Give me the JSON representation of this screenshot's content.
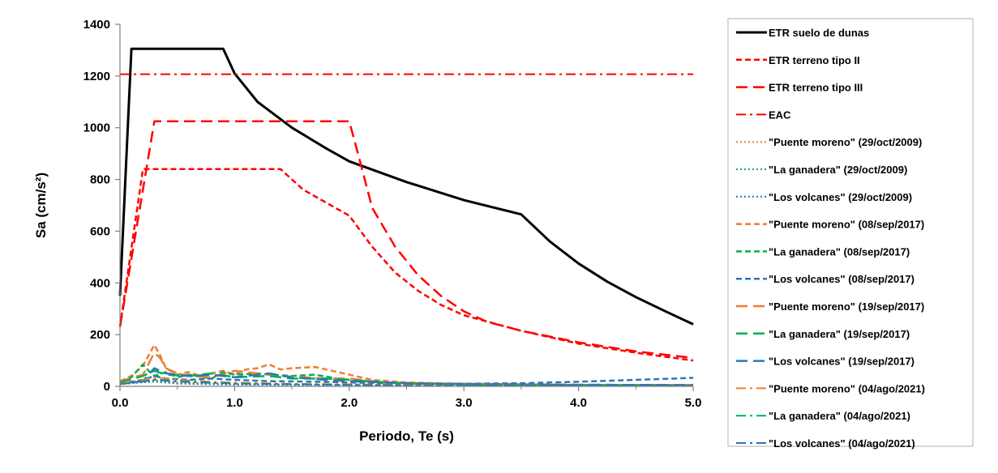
{
  "chart_data": {
    "type": "line",
    "title": "",
    "xlabel": "Periodo, Te (s)",
    "ylabel": "Sa (cm/s²)",
    "xlim": [
      0,
      5
    ],
    "ylim": [
      0,
      1400
    ],
    "grid": false,
    "legend_position": "right",
    "x_ticks": [
      "0.0",
      "1.0",
      "2.0",
      "3.0",
      "4.0",
      "5.0"
    ],
    "y_ticks": [
      "0",
      "200",
      "400",
      "600",
      "800",
      "1000",
      "1200",
      "1400"
    ],
    "x_tick_values": [
      0,
      1,
      2,
      3,
      4,
      5
    ],
    "y_tick_values": [
      0,
      200,
      400,
      600,
      800,
      1000,
      1200,
      1400
    ],
    "series": [
      {
        "name": "ETR suelo de dunas",
        "color": "#000000",
        "dash": "solid",
        "width": 3,
        "points": [
          [
            0,
            350
          ],
          [
            0.1,
            1305
          ],
          [
            0.9,
            1305
          ],
          [
            1.0,
            1210
          ],
          [
            1.2,
            1100
          ],
          [
            1.5,
            1000
          ],
          [
            1.8,
            920
          ],
          [
            2.0,
            870
          ],
          [
            2.5,
            790
          ],
          [
            3.0,
            720
          ],
          [
            3.5,
            665
          ],
          [
            3.75,
            560
          ],
          [
            4.0,
            475
          ],
          [
            4.25,
            405
          ],
          [
            4.5,
            345
          ],
          [
            4.75,
            292
          ],
          [
            5.0,
            240
          ]
        ]
      },
      {
        "name": "ETR terreno tipo II",
        "color": "#ff0000",
        "dash": "short",
        "width": 2.5,
        "points": [
          [
            0,
            230
          ],
          [
            0.2,
            840
          ],
          [
            1.4,
            840
          ],
          [
            1.6,
            760
          ],
          [
            1.8,
            710
          ],
          [
            2.0,
            660
          ],
          [
            2.2,
            540
          ],
          [
            2.4,
            440
          ],
          [
            2.6,
            370
          ],
          [
            2.8,
            315
          ],
          [
            3.0,
            275
          ],
          [
            3.5,
            215
          ],
          [
            4.0,
            165
          ],
          [
            4.5,
            130
          ],
          [
            5.0,
            100
          ]
        ]
      },
      {
        "name": "ETR terreno tipo III",
        "color": "#ff0000",
        "dash": "long",
        "width": 2.5,
        "points": [
          [
            0,
            230
          ],
          [
            0.3,
            1025
          ],
          [
            2.0,
            1025
          ],
          [
            2.1,
            860
          ],
          [
            2.2,
            690
          ],
          [
            2.4,
            540
          ],
          [
            2.6,
            430
          ],
          [
            2.8,
            350
          ],
          [
            3.0,
            290
          ],
          [
            3.2,
            250
          ],
          [
            3.5,
            215
          ],
          [
            4.0,
            170
          ],
          [
            4.5,
            135
          ],
          [
            5.0,
            110
          ]
        ]
      },
      {
        "name": "EAC",
        "color": "#ff0000",
        "dash": "dashdot",
        "width": 2,
        "points": [
          [
            0,
            1207
          ],
          [
            5.0,
            1207
          ]
        ]
      },
      {
        "name": "\"Puente moreno\" (29/oct/2009)",
        "color": "#ed7d31",
        "dash": "dotted",
        "width": 1.8,
        "points": [
          [
            0,
            10
          ],
          [
            0.2,
            20
          ],
          [
            0.3,
            25
          ],
          [
            0.5,
            15
          ],
          [
            0.8,
            12
          ],
          [
            1.0,
            10
          ],
          [
            1.5,
            8
          ],
          [
            2.0,
            6
          ],
          [
            3.0,
            4
          ],
          [
            4.0,
            3
          ],
          [
            5.0,
            2
          ]
        ]
      },
      {
        "name": "\"La ganadera\" (29/oct/2009)",
        "color": "#00b050",
        "dash": "dotted",
        "width": 1.8,
        "points": [
          [
            0,
            8
          ],
          [
            0.2,
            18
          ],
          [
            0.3,
            22
          ],
          [
            0.5,
            12
          ],
          [
            1.0,
            8
          ],
          [
            2.0,
            5
          ],
          [
            3.0,
            3
          ],
          [
            5.0,
            2
          ]
        ]
      },
      {
        "name": "\"Los volcanes\" (29/oct/2009)",
        "color": "#2e75b6",
        "dash": "dotted",
        "width": 1.8,
        "points": [
          [
            0,
            8
          ],
          [
            0.2,
            15
          ],
          [
            0.3,
            18
          ],
          [
            0.5,
            10
          ],
          [
            1.0,
            6
          ],
          [
            2.0,
            4
          ],
          [
            3.0,
            3
          ],
          [
            5.0,
            2
          ]
        ]
      },
      {
        "name": "\"Puente moreno\" (08/sep/2017)",
        "color": "#ed7d31",
        "dash": "short",
        "width": 2.5,
        "points": [
          [
            0,
            20
          ],
          [
            0.1,
            40
          ],
          [
            0.2,
            80
          ],
          [
            0.3,
            160
          ],
          [
            0.35,
            120
          ],
          [
            0.4,
            70
          ],
          [
            0.5,
            45
          ],
          [
            0.6,
            55
          ],
          [
            0.7,
            40
          ],
          [
            0.8,
            50
          ],
          [
            0.9,
            60
          ],
          [
            1.0,
            45
          ],
          [
            1.1,
            65
          ],
          [
            1.2,
            70
          ],
          [
            1.3,
            85
          ],
          [
            1.4,
            65
          ],
          [
            1.5,
            70
          ],
          [
            1.7,
            75
          ],
          [
            1.9,
            55
          ],
          [
            2.0,
            45
          ],
          [
            2.2,
            25
          ],
          [
            2.5,
            15
          ],
          [
            3.0,
            10
          ],
          [
            4.0,
            6
          ],
          [
            5.0,
            5
          ]
        ]
      },
      {
        "name": "\"La ganadera\" (08/sep/2017)",
        "color": "#00b050",
        "dash": "short",
        "width": 2.5,
        "points": [
          [
            0,
            15
          ],
          [
            0.1,
            35
          ],
          [
            0.2,
            85
          ],
          [
            0.25,
            60
          ],
          [
            0.3,
            40
          ],
          [
            0.4,
            55
          ],
          [
            0.5,
            35
          ],
          [
            0.6,
            45
          ],
          [
            0.8,
            30
          ],
          [
            0.9,
            55
          ],
          [
            1.0,
            45
          ],
          [
            1.2,
            50
          ],
          [
            1.3,
            45
          ],
          [
            1.5,
            40
          ],
          [
            1.7,
            45
          ],
          [
            1.9,
            30
          ],
          [
            2.0,
            25
          ],
          [
            2.3,
            15
          ],
          [
            3.0,
            8
          ],
          [
            4.0,
            5
          ],
          [
            5.0,
            4
          ]
        ]
      },
      {
        "name": "\"Los volcanes\" (08/sep/2017)",
        "color": "#2e75b6",
        "dash": "short",
        "width": 2.5,
        "points": [
          [
            0,
            10
          ],
          [
            0.2,
            25
          ],
          [
            0.3,
            40
          ],
          [
            0.4,
            30
          ],
          [
            0.6,
            25
          ],
          [
            0.8,
            30
          ],
          [
            1.0,
            25
          ],
          [
            1.3,
            20
          ],
          [
            1.7,
            18
          ],
          [
            2.0,
            15
          ],
          [
            2.5,
            10
          ],
          [
            3.0,
            10
          ],
          [
            3.5,
            12
          ],
          [
            4.0,
            18
          ],
          [
            4.5,
            25
          ],
          [
            5.0,
            33
          ]
        ]
      },
      {
        "name": "\"Puente moreno\" (19/sep/2017)",
        "color": "#ed7d31",
        "dash": "long",
        "width": 2.5,
        "points": [
          [
            0,
            20
          ],
          [
            0.2,
            45
          ],
          [
            0.3,
            130
          ],
          [
            0.35,
            110
          ],
          [
            0.4,
            70
          ],
          [
            0.5,
            50
          ],
          [
            0.6,
            40
          ],
          [
            0.8,
            35
          ],
          [
            1.0,
            60
          ],
          [
            1.2,
            50
          ],
          [
            1.4,
            40
          ],
          [
            1.6,
            35
          ],
          [
            1.8,
            30
          ],
          [
            2.0,
            30
          ],
          [
            2.3,
            15
          ],
          [
            3.0,
            8
          ],
          [
            4.0,
            6
          ],
          [
            5.0,
            5
          ]
        ]
      },
      {
        "name": "\"La ganadera\" (19/sep/2017)",
        "color": "#00b050",
        "dash": "long",
        "width": 2.5,
        "points": [
          [
            0,
            15
          ],
          [
            0.2,
            40
          ],
          [
            0.3,
            60
          ],
          [
            0.4,
            45
          ],
          [
            0.6,
            40
          ],
          [
            0.8,
            50
          ],
          [
            1.0,
            35
          ],
          [
            1.3,
            40
          ],
          [
            1.5,
            30
          ],
          [
            1.8,
            30
          ],
          [
            2.0,
            25
          ],
          [
            2.5,
            10
          ],
          [
            3.0,
            6
          ],
          [
            5.0,
            3
          ]
        ]
      },
      {
        "name": "\"Los volcanes\" (19/sep/2017)",
        "color": "#2e75b6",
        "dash": "long",
        "width": 2.5,
        "points": [
          [
            0,
            10
          ],
          [
            0.2,
            20
          ],
          [
            0.3,
            70
          ],
          [
            0.4,
            50
          ],
          [
            0.6,
            40
          ],
          [
            0.8,
            45
          ],
          [
            1.0,
            35
          ],
          [
            1.3,
            50
          ],
          [
            1.5,
            35
          ],
          [
            1.8,
            25
          ],
          [
            2.0,
            20
          ],
          [
            2.5,
            12
          ],
          [
            3.0,
            8
          ],
          [
            4.0,
            6
          ],
          [
            5.0,
            5
          ]
        ]
      },
      {
        "name": "\"Puente moreno\" (04/ago/2021)",
        "color": "#ed7d31",
        "dash": "dashdot",
        "width": 1.8,
        "points": [
          [
            0,
            10
          ],
          [
            0.2,
            25
          ],
          [
            0.3,
            35
          ],
          [
            0.5,
            25
          ],
          [
            0.8,
            18
          ],
          [
            1.0,
            15
          ],
          [
            1.5,
            10
          ],
          [
            2.0,
            8
          ],
          [
            3.0,
            5
          ],
          [
            5.0,
            3
          ]
        ]
      },
      {
        "name": "\"La ganadera\" (04/ago/2021)",
        "color": "#00b050",
        "dash": "dashdot",
        "width": 1.8,
        "points": [
          [
            0,
            8
          ],
          [
            0.2,
            20
          ],
          [
            0.3,
            28
          ],
          [
            0.5,
            20
          ],
          [
            1.0,
            12
          ],
          [
            2.0,
            6
          ],
          [
            3.0,
            4
          ],
          [
            5.0,
            2
          ]
        ]
      },
      {
        "name": "\"Los volcanes\" (04/ago/2021)",
        "color": "#2e75b6",
        "dash": "dashdot",
        "width": 1.8,
        "points": [
          [
            0,
            8
          ],
          [
            0.2,
            18
          ],
          [
            0.3,
            25
          ],
          [
            0.5,
            18
          ],
          [
            1.0,
            10
          ],
          [
            2.0,
            5
          ],
          [
            3.0,
            4
          ],
          [
            5.0,
            3
          ]
        ]
      }
    ]
  }
}
